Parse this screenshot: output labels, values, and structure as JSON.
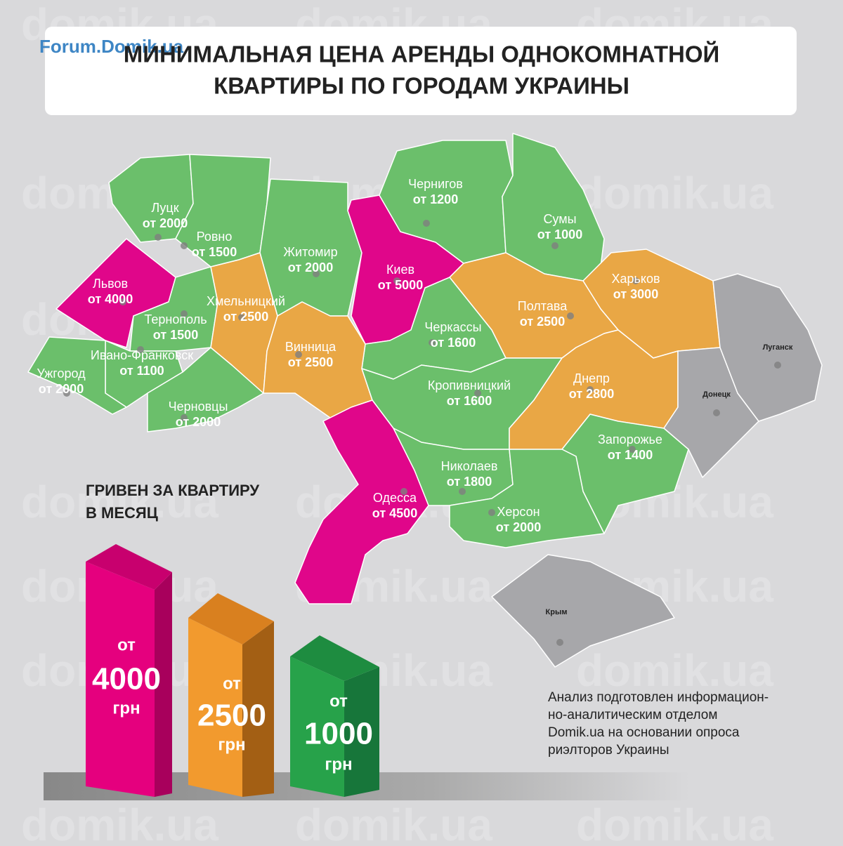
{
  "header": {
    "logo": "Forum.Domik.ua",
    "title_lines": [
      "МИНИМАЛЬНАЯ ЦЕНА АРЕНДЫ ОДНОКОМНАТНОЙ",
      "КВАРТИРЫ ПО ГОРОДАМ УКРАИНЫ"
    ]
  },
  "watermark": "domik.ua",
  "regions": [
    {
      "name": "Луцк",
      "price": "от 2000",
      "color": "#6bbf6b"
    },
    {
      "name": "Ровно",
      "price": "от 1500",
      "color": "#6bbf6b"
    },
    {
      "name": "Житомир",
      "price": "от 2000",
      "color": "#6bbf6b"
    },
    {
      "name": "Киев",
      "price": "от 5000",
      "color": "#e0068a"
    },
    {
      "name": "Чернигов",
      "price": "от 1200",
      "color": "#6bbf6b"
    },
    {
      "name": "Сумы",
      "price": "от 1000",
      "color": "#6bbf6b"
    },
    {
      "name": "Харьков",
      "price": "от 3000",
      "color": "#e9a745"
    },
    {
      "name": "Полтава",
      "price": "от 2500",
      "color": "#e9a745"
    },
    {
      "name": "Черкассы",
      "price": "от 1600",
      "color": "#6bbf6b"
    },
    {
      "name": "Львов",
      "price": "от 4000",
      "color": "#e0068a"
    },
    {
      "name": "Тернополь",
      "price": "от 1500",
      "color": "#6bbf6b"
    },
    {
      "name": "Ивано-Франковск",
      "price": "от 1100",
      "color": "#6bbf6b"
    },
    {
      "name": "Ужгород",
      "price": "от 2000",
      "color": "#6bbf6b"
    },
    {
      "name": "Черновцы",
      "price": "от 2000",
      "color": "#6bbf6b"
    },
    {
      "name": "Хмельницкий",
      "price": "от 2500",
      "color": "#e9a745"
    },
    {
      "name": "Винница",
      "price": "от 2500",
      "color": "#e9a745"
    },
    {
      "name": "Кропивницкий",
      "price": "от 1600",
      "color": "#6bbf6b"
    },
    {
      "name": "Днепр",
      "price": "от 2800",
      "color": "#e9a745"
    },
    {
      "name": "Донецк",
      "color": "#a7a7aa"
    },
    {
      "name": "Луганск",
      "color": "#a7a7aa"
    },
    {
      "name": "Запорожье",
      "price": "от 1400",
      "color": "#6bbf6b"
    },
    {
      "name": "Николаев",
      "price": "от 1800",
      "color": "#6bbf6b"
    },
    {
      "name": "Херсон",
      "price": "от 2000",
      "color": "#6bbf6b"
    },
    {
      "name": "Одесса",
      "price": "от 4500",
      "color": "#e0068a"
    },
    {
      "name": "Крым",
      "color": "#a7a7aa"
    }
  ],
  "legend": {
    "title_lines": [
      "ГРИВЕН ЗА КВАРТИРУ",
      "В МЕСЯЦ"
    ],
    "items": [
      {
        "prefix": "от",
        "amount": "4000",
        "unit": "грн",
        "colors": [
          "#e5007e",
          "#a8005c",
          "#c8006e"
        ]
      },
      {
        "prefix": "от",
        "amount": "2500",
        "unit": "грн",
        "colors": [
          "#f29a2e",
          "#a35f14",
          "#d9801f"
        ]
      },
      {
        "prefix": "от",
        "amount": "1000",
        "unit": "грн",
        "colors": [
          "#27a24a",
          "#17763a",
          "#1e8c40"
        ]
      }
    ]
  },
  "note_lines": [
    "Анализ подготовлен информацион-",
    "но-аналитическим отделом",
    "Domik.ua на основании опроса",
    "риэлторов Украины"
  ]
}
